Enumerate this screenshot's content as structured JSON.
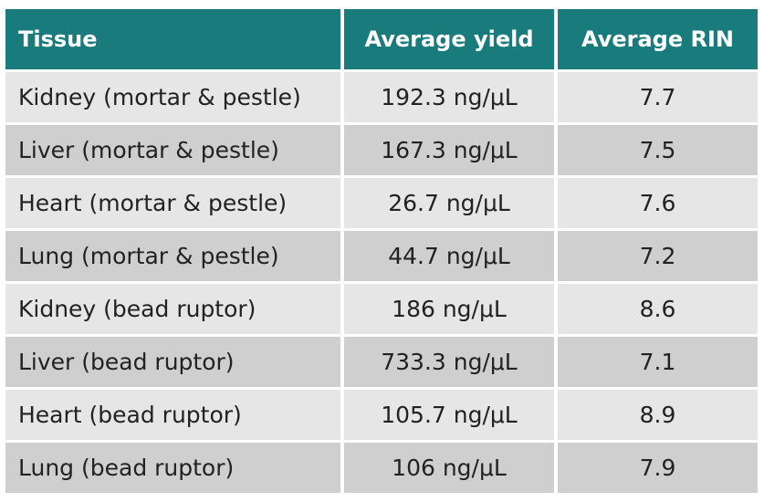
{
  "table": {
    "header": [
      "Tissue",
      "Average yield",
      "Average RIN"
    ],
    "rows": [
      [
        "Kidney (mortar & pestle)",
        "192.3 ng/μL",
        "7.7"
      ],
      [
        "Liver (mortar & pestle)",
        "167.3 ng/μL",
        "7.5"
      ],
      [
        "Heart (mortar & pestle)",
        "26.7 ng/μL",
        "7.6"
      ],
      [
        "Lung (mortar & pestle)",
        "44.7 ng/μL",
        "7.2"
      ],
      [
        "Kidney (bead ruptor)",
        "186 ng/μL",
        "8.6"
      ],
      [
        "Liver (bead ruptor)",
        "733.3 ng/μL",
        "7.1"
      ],
      [
        "Heart (bead ruptor)",
        "105.7 ng/μL",
        "8.9"
      ],
      [
        "Lung (bead ruptor)",
        "106 ng/μL",
        "7.9"
      ]
    ]
  }
}
